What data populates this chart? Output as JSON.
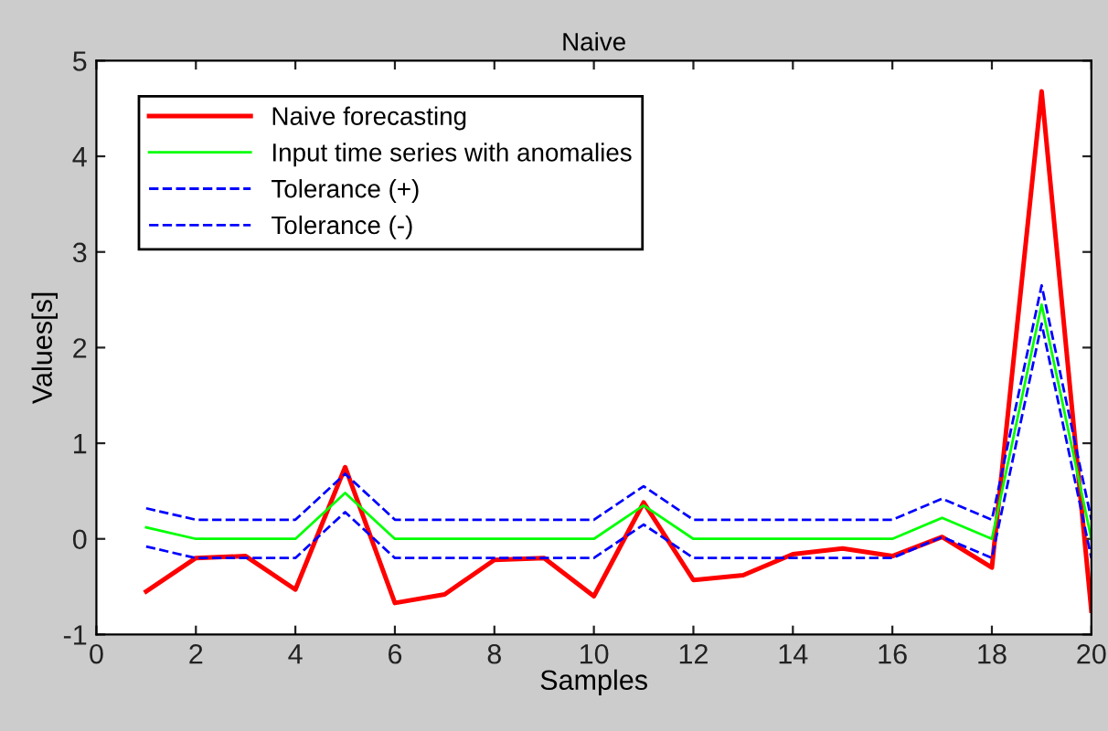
{
  "chart_data": {
    "type": "line",
    "title": "Naive",
    "xlabel": "Samples",
    "ylabel": "Values[s]",
    "x": [
      1,
      2,
      3,
      4,
      5,
      6,
      7,
      8,
      9,
      10,
      11,
      12,
      13,
      14,
      15,
      16,
      17,
      18,
      19,
      20
    ],
    "series": [
      {
        "name": "Naive forecasting",
        "color": "#ff0000",
        "values": [
          -0.55,
          -0.2,
          -0.18,
          -0.53,
          0.75,
          -0.67,
          -0.58,
          -0.22,
          -0.2,
          -0.6,
          0.38,
          -0.43,
          -0.38,
          -0.16,
          -0.1,
          -0.18,
          0.02,
          -0.3,
          4.68,
          -0.75
        ]
      },
      {
        "name": "Input time series with anomalies",
        "color": "#00ff00",
        "values": [
          0.12,
          0,
          0,
          0,
          0.48,
          0,
          0,
          0,
          0,
          0,
          0.35,
          0,
          0,
          0,
          0,
          0,
          0.22,
          0,
          2.45,
          0
        ]
      },
      {
        "name": "Tolerance (+)",
        "color": "#0000ff",
        "line_style": "dashed",
        "values": [
          0.32,
          0.2,
          0.2,
          0.2,
          0.68,
          0.2,
          0.2,
          0.2,
          0.2,
          0.2,
          0.55,
          0.2,
          0.2,
          0.2,
          0.2,
          0.2,
          0.42,
          0.2,
          2.65,
          0.2
        ]
      },
      {
        "name": "Tolerance (-)",
        "color": "#0000ff",
        "line_style": "dashed",
        "values": [
          -0.08,
          -0.2,
          -0.2,
          -0.2,
          0.28,
          -0.2,
          -0.2,
          -0.2,
          -0.2,
          -0.2,
          0.15,
          -0.2,
          -0.2,
          -0.2,
          -0.2,
          -0.2,
          0.02,
          -0.2,
          2.25,
          -0.2
        ]
      }
    ],
    "xlim": [
      0,
      20
    ],
    "xticks": [
      0,
      2,
      4,
      6,
      8,
      10,
      12,
      14,
      16,
      18,
      20
    ],
    "ylim": [
      -1,
      5
    ],
    "yticks": [
      -1,
      0,
      1,
      2,
      3,
      4,
      5
    ],
    "grid": false,
    "legend": "top left",
    "line_style": "solid",
    "marker": "none"
  }
}
